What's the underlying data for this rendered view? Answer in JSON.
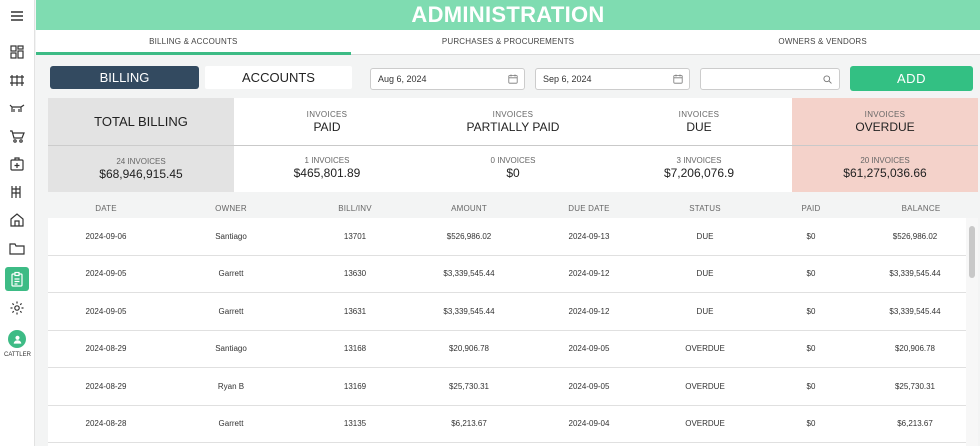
{
  "sidebar": {
    "icons": [
      "menu-icon",
      "dashboard-icon",
      "fence-icon",
      "cattle-icon",
      "cart-icon",
      "medical-kit-icon",
      "feed-icon",
      "barn-icon",
      "folder-icon",
      "clipboard-icon",
      "gear-icon"
    ],
    "active": "clipboard-icon",
    "user_label": "CATTLER",
    "accent": "#3dbb85"
  },
  "header": {
    "title": "ADMINISTRATION",
    "color": "#7fdcb1"
  },
  "tabs": [
    {
      "label": "BILLING & ACCOUNTS",
      "active": true
    },
    {
      "label": "PURCHASES & PROCUREMENTS",
      "active": false
    },
    {
      "label": "OWNERS & VENDORS",
      "active": false
    }
  ],
  "controls": {
    "billing_label": "BILLING",
    "accounts_label": "ACCOUNTS",
    "start_date": "Aug 6, 2024",
    "end_date": "Sep 6, 2024",
    "search_value": "",
    "add_label": "ADD"
  },
  "summary": {
    "total": {
      "title": "TOTAL BILLING",
      "count": "24 INVOICES",
      "amount": "$68,946,915.45"
    },
    "paid": {
      "label": "INVOICES",
      "status": "PAID",
      "count": "1 INVOICES",
      "amount": "$465,801.89"
    },
    "partial": {
      "label": "INVOICES",
      "status": "PARTIALLY PAID",
      "count": "0 INVOICES",
      "amount": "$0"
    },
    "due": {
      "label": "INVOICES",
      "status": "DUE",
      "count": "3 INVOICES",
      "amount": "$7,206,076.9"
    },
    "overdue": {
      "label": "INVOICES",
      "status": "OVERDUE",
      "count": "20 INVOICES",
      "amount": "$61,275,036.66"
    }
  },
  "table": {
    "columns": [
      "DATE",
      "OWNER",
      "BILL/INV",
      "AMOUNT",
      "DUE DATE",
      "STATUS",
      "PAID",
      "BALANCE"
    ],
    "rows": [
      [
        "2024-09-06",
        "Santiago",
        "13701",
        "$526,986.02",
        "2024-09-13",
        "DUE",
        "$0",
        "$526,986.02"
      ],
      [
        "2024-09-05",
        "Garrett",
        "13630",
        "$3,339,545.44",
        "2024-09-12",
        "DUE",
        "$0",
        "$3,339,545.44"
      ],
      [
        "2024-09-05",
        "Garrett",
        "13631",
        "$3,339,545.44",
        "2024-09-12",
        "DUE",
        "$0",
        "$3,339,545.44"
      ],
      [
        "2024-08-29",
        "Santiago",
        "13168",
        "$20,906.78",
        "2024-09-05",
        "OVERDUE",
        "$0",
        "$20,906.78"
      ],
      [
        "2024-08-29",
        "Ryan B",
        "13169",
        "$25,730.31",
        "2024-09-05",
        "OVERDUE",
        "$0",
        "$25,730.31"
      ],
      [
        "2024-08-28",
        "Garrett",
        "13135",
        "$6,213.67",
        "2024-09-04",
        "OVERDUE",
        "$0",
        "$6,213.67"
      ]
    ]
  }
}
